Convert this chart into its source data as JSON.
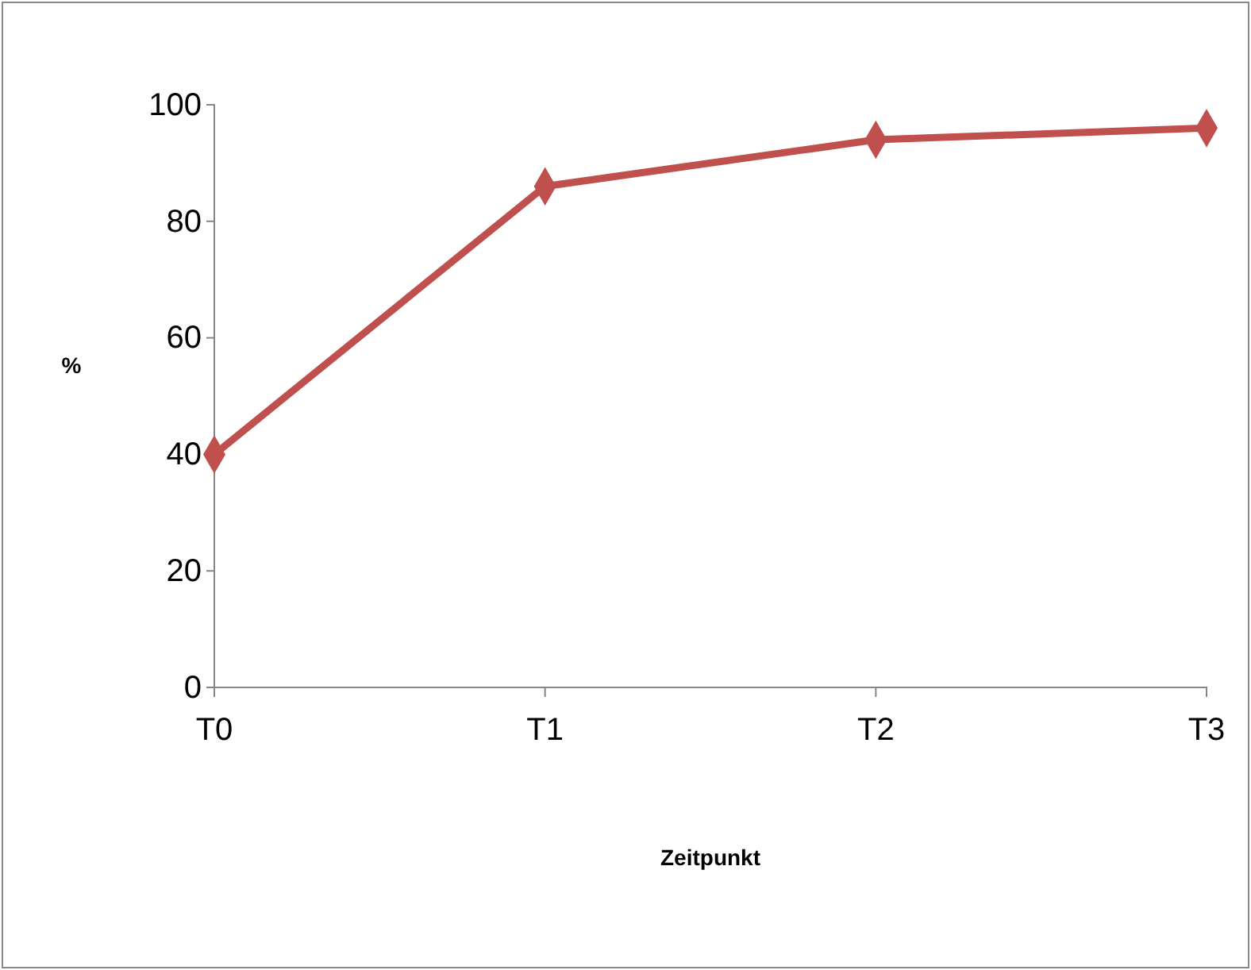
{
  "chart_data": {
    "type": "line",
    "xlabel": "Zeitpunkt",
    "ylabel": "%",
    "categories": [
      "T0",
      "T1",
      "T2",
      "T3"
    ],
    "series": [
      {
        "color": "#c0504d",
        "values": [
          40,
          86,
          94,
          96
        ]
      }
    ],
    "ylim": [
      0,
      100
    ],
    "yticks": [
      0,
      20,
      40,
      60,
      80,
      100
    ],
    "grid": false,
    "marker": "diamond",
    "line_style": "solid"
  }
}
